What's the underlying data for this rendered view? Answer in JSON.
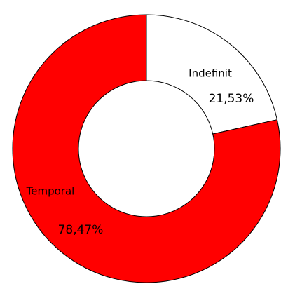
{
  "chart_data": {
    "type": "donut",
    "categories": [
      "Indefinit",
      "Temporal"
    ],
    "values": [
      21.53,
      78.47
    ],
    "value_labels": [
      "21,53%",
      "78,47%"
    ],
    "colors": [
      "#ffffff",
      "#ff0000"
    ]
  }
}
